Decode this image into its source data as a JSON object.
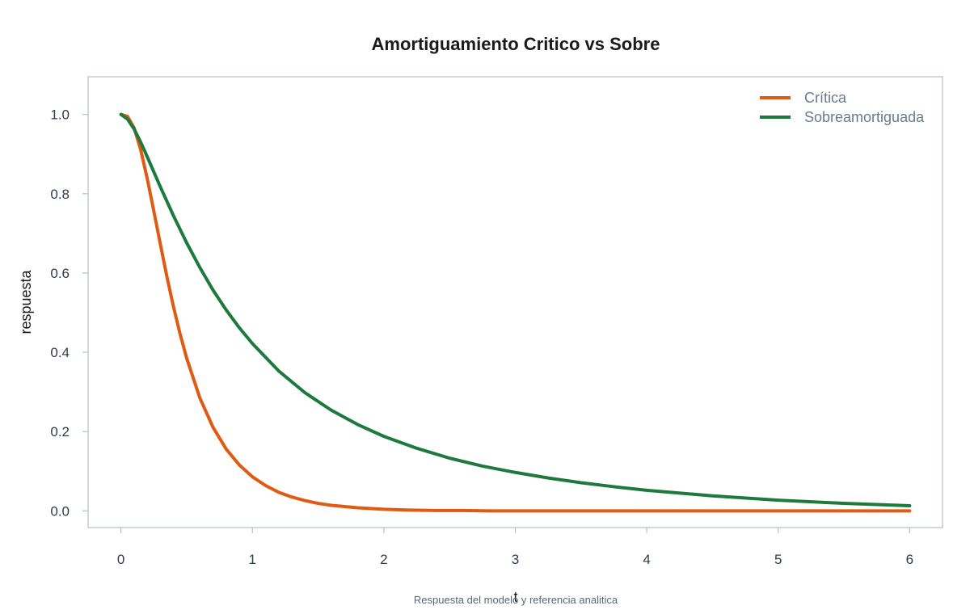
{
  "chart_data": {
    "type": "line",
    "title": "Amortiguamiento Critico vs Sobre",
    "xlabel": "t",
    "ylabel": "respuesta",
    "caption": "Respuesta del modelo y referencia analitica",
    "xlim": [
      -0.25,
      6.25
    ],
    "ylim": [
      -0.042,
      1.095
    ],
    "x_ticks": [
      "0",
      "1",
      "2",
      "3",
      "4",
      "5",
      "6"
    ],
    "y_ticks": [
      "0.0",
      "0.2",
      "0.4",
      "0.6",
      "0.8",
      "1.0"
    ],
    "grid": false,
    "legend_position": "top-right",
    "series": [
      {
        "name": "Crítica",
        "color": "#e05a14",
        "x": [
          0,
          0.05,
          0.1,
          0.15,
          0.2,
          0.25,
          0.3,
          0.35,
          0.4,
          0.45,
          0.5,
          0.6,
          0.7,
          0.8,
          0.9,
          1.0,
          1.1,
          1.2,
          1.3,
          1.4,
          1.5,
          1.6,
          1.8,
          2.0,
          2.2,
          2.4,
          2.6,
          2.8,
          3.0,
          3.5,
          4.0,
          4.5,
          5.0,
          5.5,
          6.0
        ],
        "values": [
          1.0,
          0.995,
          0.966,
          0.911,
          0.838,
          0.756,
          0.672,
          0.59,
          0.514,
          0.446,
          0.385,
          0.285,
          0.211,
          0.156,
          0.116,
          0.086,
          0.064,
          0.047,
          0.035,
          0.026,
          0.019,
          0.014,
          0.008,
          0.004,
          0.002,
          0.001,
          0.001,
          0.0,
          0.0,
          0.0,
          0.0,
          0.0,
          0.0,
          0.0,
          0.0
        ]
      },
      {
        "name": "Sobreamortiguada",
        "color": "#1e7a3c",
        "x": [
          0,
          0.05,
          0.1,
          0.15,
          0.2,
          0.25,
          0.3,
          0.4,
          0.5,
          0.6,
          0.7,
          0.8,
          0.9,
          1.0,
          1.2,
          1.4,
          1.6,
          1.8,
          2.0,
          2.25,
          2.5,
          2.75,
          3.0,
          3.25,
          3.5,
          3.75,
          4.0,
          4.5,
          5.0,
          5.5,
          6.0
        ],
        "values": [
          1.0,
          0.988,
          0.963,
          0.93,
          0.893,
          0.855,
          0.817,
          0.744,
          0.676,
          0.614,
          0.557,
          0.507,
          0.462,
          0.422,
          0.353,
          0.298,
          0.254,
          0.218,
          0.188,
          0.158,
          0.133,
          0.113,
          0.097,
          0.083,
          0.071,
          0.061,
          0.052,
          0.038,
          0.027,
          0.019,
          0.013
        ]
      }
    ]
  }
}
